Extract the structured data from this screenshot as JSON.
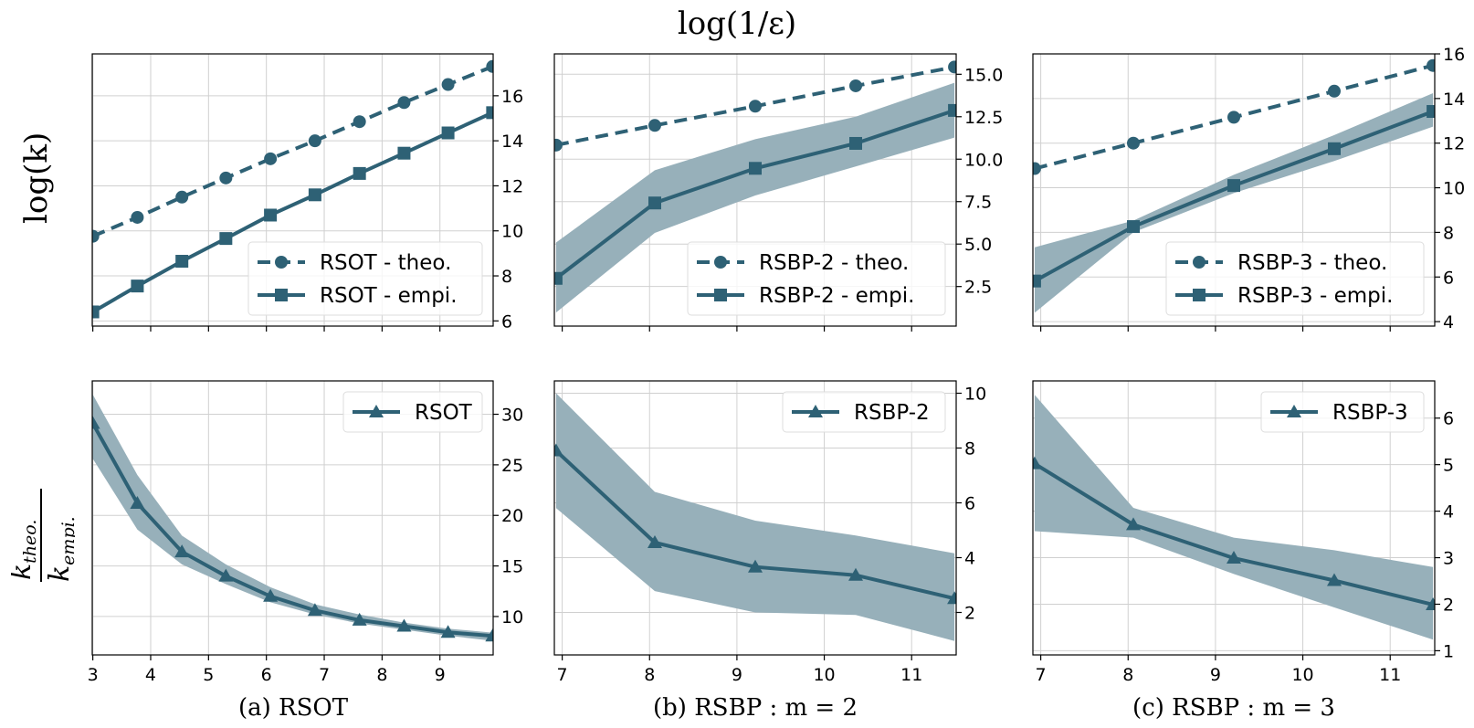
{
  "figure": {
    "top_title": "log(1/ε)",
    "ylabel_top": "log(k)",
    "ylabel_bottom_numerator": "k",
    "ylabel_bottom_numerator_sub": "theo.",
    "ylabel_bottom_denominator": "k",
    "ylabel_bottom_denominator_sub": "empi.",
    "captions": [
      "(a) RSOT",
      "(b) RSBP : m = 2",
      "(c) RSBP : m = 3"
    ],
    "colors": {
      "line": "#2e6175",
      "band": "#97b0ba",
      "grid": "#d0d0d0"
    }
  },
  "chart_data": [
    {
      "type": "line",
      "panel": "a-top",
      "grid": true,
      "legend": "lower-right",
      "x": [
        3,
        3.77,
        4.54,
        5.3,
        6.07,
        6.84,
        7.61,
        8.38,
        9.14,
        9.91
      ],
      "xlim": [
        2.99,
        9.92
      ],
      "ylim": [
        5.77,
        17.86
      ],
      "xticks": [
        3,
        4,
        5,
        6,
        7,
        8,
        9
      ],
      "yticks": [
        6,
        8,
        10,
        12,
        14,
        16
      ],
      "series": [
        {
          "name": "RSOT - theo.",
          "style": "dashed",
          "marker": "circle",
          "values": [
            9.76,
            10.6,
            11.5,
            12.35,
            13.2,
            14.0,
            14.85,
            15.7,
            16.5,
            17.3
          ]
        },
        {
          "name": "RSOT - empi.",
          "style": "solid",
          "marker": "square",
          "values": [
            6.4,
            7.55,
            8.65,
            9.66,
            10.7,
            11.6,
            12.55,
            13.45,
            14.35,
            15.25
          ]
        }
      ]
    },
    {
      "type": "line",
      "panel": "b-top",
      "grid": true,
      "legend": "lower-right",
      "x": [
        6.93,
        8.06,
        9.21,
        10.36,
        11.49
      ],
      "xlim": [
        6.91,
        11.51
      ],
      "ylim": [
        0.17,
        16.2
      ],
      "xticks": [
        7,
        8,
        9,
        10,
        11
      ],
      "yticks": [
        2.5,
        5.0,
        7.5,
        10.0,
        12.5,
        15.0
      ],
      "ytick_labels": [
        "2.5",
        "5.0",
        "7.5",
        "10.0",
        "12.5",
        "15.0"
      ],
      "series": [
        {
          "name": "RSBP-2 - theo.",
          "style": "dashed",
          "marker": "circle",
          "values": [
            10.83,
            11.99,
            13.12,
            14.32,
            15.43
          ]
        },
        {
          "name": "RSBP-2 - empi.",
          "style": "solid",
          "marker": "square",
          "values": [
            2.98,
            7.42,
            9.46,
            10.93,
            12.87
          ],
          "band_upper": [
            5.09,
            9.35,
            11.18,
            12.5,
            14.5
          ],
          "band_lower": [
            0.97,
            5.66,
            7.86,
            9.57,
            11.27
          ]
        }
      ]
    },
    {
      "type": "line",
      "panel": "c-top",
      "grid": true,
      "legend": "lower-right",
      "x": [
        6.93,
        8.06,
        9.21,
        10.36,
        11.49
      ],
      "xlim": [
        6.91,
        11.51
      ],
      "ylim": [
        3.8,
        16.0
      ],
      "xticks": [
        7,
        8,
        9,
        10,
        11
      ],
      "yticks": [
        4,
        6,
        8,
        10,
        12,
        14,
        16
      ],
      "series": [
        {
          "name": "RSBP-3 - theo.",
          "style": "dashed",
          "marker": "circle",
          "values": [
            10.86,
            12.0,
            13.16,
            14.33,
            15.48
          ]
        },
        {
          "name": "RSBP-3 - empi.",
          "style": "solid",
          "marker": "square",
          "values": [
            5.82,
            8.26,
            10.1,
            11.75,
            13.42
          ],
          "band_upper": [
            7.33,
            8.53,
            10.58,
            12.36,
            14.24
          ],
          "band_lower": [
            4.4,
            8.0,
            9.76,
            11.2,
            12.74
          ]
        }
      ]
    },
    {
      "type": "line",
      "panel": "a-bottom",
      "grid": true,
      "legend": "upper-right",
      "x": [
        3,
        3.77,
        4.54,
        5.3,
        6.07,
        6.84,
        7.61,
        8.38,
        9.14,
        9.91
      ],
      "xlim": [
        2.99,
        9.92
      ],
      "ylim": [
        6.2,
        33.3
      ],
      "xticks": [
        3,
        4,
        5,
        6,
        7,
        8,
        9
      ],
      "yticks": [
        10,
        15,
        20,
        25,
        30
      ],
      "series": [
        {
          "name": "RSOT",
          "style": "solid",
          "marker": "triangle",
          "values": [
            29.1,
            21.2,
            16.4,
            14.0,
            12.0,
            10.6,
            9.64,
            9.04,
            8.44,
            8.08
          ],
          "band_upper": [
            31.95,
            24.0,
            18.0,
            15.15,
            12.9,
            11.2,
            10.2,
            9.4,
            8.8,
            8.4
          ],
          "band_lower": [
            25.6,
            18.6,
            15.15,
            13.2,
            11.4,
            10.2,
            9.3,
            8.7,
            8.1,
            7.6
          ]
        }
      ]
    },
    {
      "type": "line",
      "panel": "b-bottom",
      "grid": true,
      "legend": "upper-right",
      "x": [
        6.93,
        8.06,
        9.21,
        10.36,
        11.49
      ],
      "xlim": [
        6.91,
        11.51
      ],
      "ylim": [
        0.45,
        10.45
      ],
      "xticks": [
        7,
        8,
        9,
        10,
        11
      ],
      "yticks": [
        2,
        4,
        6,
        8,
        10
      ],
      "series": [
        {
          "name": "RSBP-2",
          "style": "solid",
          "marker": "triangle",
          "values": [
            7.9,
            4.55,
            3.66,
            3.36,
            2.51
          ],
          "band_upper": [
            10.0,
            6.4,
            5.35,
            4.81,
            4.16
          ],
          "band_lower": [
            5.81,
            2.78,
            2.0,
            1.91,
            0.96
          ]
        }
      ]
    },
    {
      "type": "line",
      "panel": "c-bottom",
      "grid": true,
      "legend": "upper-right",
      "x": [
        6.93,
        8.06,
        9.21,
        10.36,
        11.49
      ],
      "xlim": [
        6.91,
        11.51
      ],
      "ylim": [
        0.91,
        6.8
      ],
      "xticks": [
        7,
        8,
        9,
        10,
        11
      ],
      "yticks": [
        1,
        2,
        3,
        4,
        5,
        6
      ],
      "series": [
        {
          "name": "RSBP-3",
          "style": "solid",
          "marker": "triangle",
          "values": [
            5.02,
            3.71,
            2.99,
            2.51,
            1.99
          ],
          "band_upper": [
            6.5,
            4.07,
            3.43,
            3.16,
            2.8
          ],
          "band_lower": [
            3.57,
            3.43,
            2.65,
            1.93,
            1.24
          ]
        }
      ]
    }
  ]
}
